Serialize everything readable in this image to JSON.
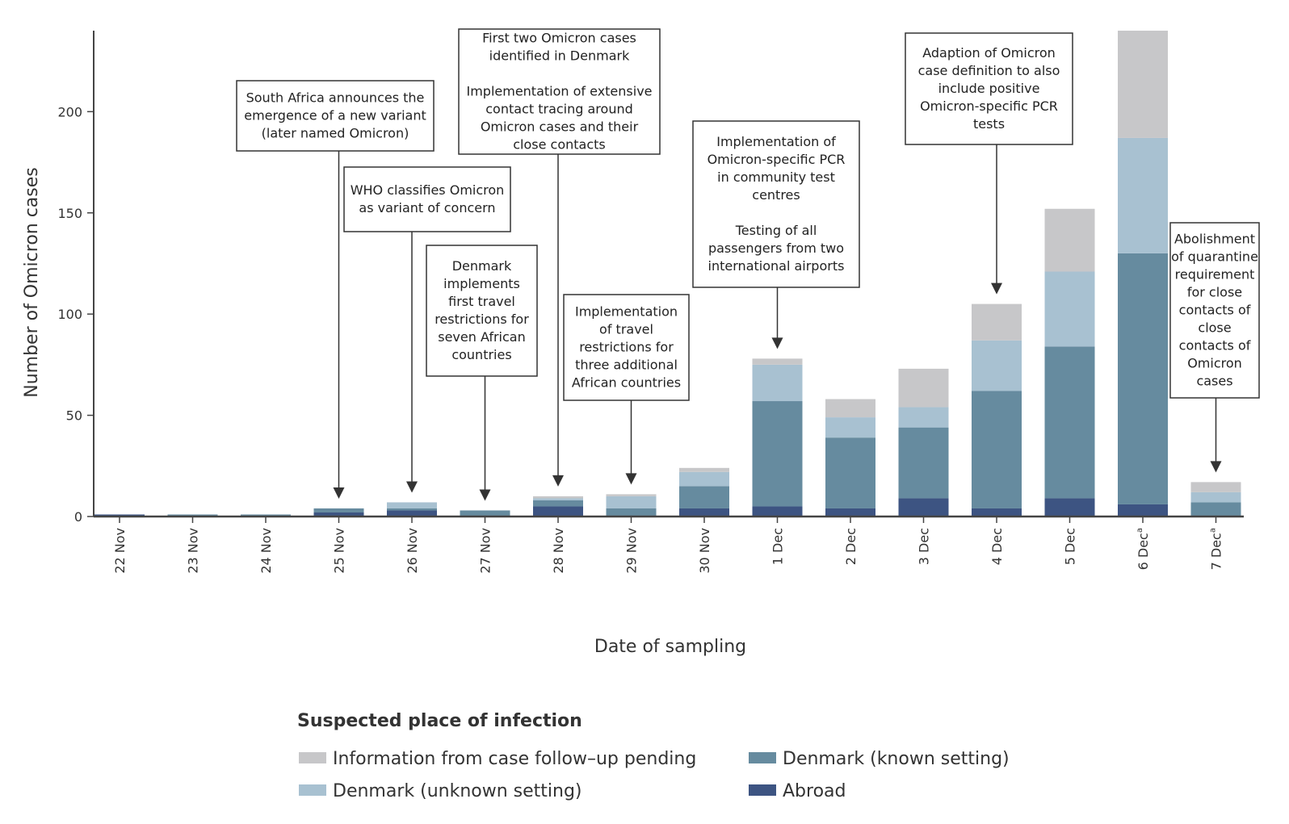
{
  "chart_data": {
    "type": "bar",
    "stacked": true,
    "categories": [
      "22 Nov",
      "23 Nov",
      "24 Nov",
      "25 Nov",
      "26 Nov",
      "27 Nov",
      "28 Nov",
      "29 Nov",
      "30 Nov",
      "1 Dec",
      "2 Dec",
      "3 Dec",
      "4 Dec",
      "5 Dec",
      "6 Dec",
      "7 Dec"
    ],
    "category_superscripts": [
      "",
      "",
      "",
      "",
      "",
      "",
      "",
      "",
      "",
      "",
      "",
      "",
      "",
      "",
      "a",
      "a"
    ],
    "series": [
      {
        "name": "Abroad",
        "color": "#3d5482",
        "values": [
          1,
          0,
          0,
          2,
          3,
          0,
          5,
          0,
          4,
          5,
          4,
          9,
          4,
          9,
          6,
          0
        ]
      },
      {
        "name": "Denmark (known setting)",
        "color": "#668b9f",
        "values": [
          0,
          1,
          1,
          2,
          1,
          3,
          3,
          4,
          11,
          52,
          35,
          35,
          58,
          75,
          124,
          7
        ]
      },
      {
        "name": "Denmark (unknown setting)",
        "color": "#a8c1d1",
        "values": [
          0,
          0,
          0,
          0,
          3,
          0,
          1,
          6,
          7,
          18,
          10,
          10,
          25,
          37,
          57,
          5
        ]
      },
      {
        "name": "Information from case follow–up pending",
        "color": "#c7c7c9",
        "values": [
          0,
          0,
          0,
          0,
          0,
          0,
          1,
          1,
          2,
          3,
          9,
          19,
          18,
          31,
          53,
          5
        ]
      }
    ],
    "title": "",
    "xlabel": "Date of sampling",
    "ylabel": "Number of Omicron cases",
    "ylim": [
      0,
      240
    ],
    "yticks": [
      0,
      50,
      100,
      150,
      200
    ],
    "legend": {
      "title": "Suspected place of infection",
      "placement": "bottom",
      "order": [
        "Information from case follow–up pending",
        "Denmark (known setting)",
        "Denmark (unknown setting)",
        "Abroad"
      ]
    },
    "annotations": [
      {
        "id": "south-africa",
        "category_index": 3,
        "lines": [
          "South Africa  announces the",
          "emergence of a new variant",
          "(later named Omicron)"
        ]
      },
      {
        "id": "who-voc",
        "category_index": 4,
        "lines": [
          "WHO classifies Omicron",
          "as variant of concern"
        ]
      },
      {
        "id": "travel-seven",
        "category_index": 5,
        "lines": [
          "Denmark",
          "implements",
          "first travel",
          "restrictions for",
          "seven African",
          "countries"
        ]
      },
      {
        "id": "first-cases",
        "category_index": 6,
        "lines": [
          "First two Omicron cases",
          "identified in Denmark",
          "",
          "Implementation of extensive",
          "contact tracing around",
          "Omicron cases and their",
          "close contacts"
        ]
      },
      {
        "id": "travel-three",
        "category_index": 7,
        "lines": [
          "Implementation",
          "of travel",
          "restrictions for",
          "three additional",
          "African countries"
        ]
      },
      {
        "id": "specific-pcr",
        "category_index": 9,
        "lines": [
          "Implementation of",
          "Omicron-specific PCR",
          "in community test",
          "centres",
          "",
          "Testing of all",
          "passengers from two",
          "international airports"
        ]
      },
      {
        "id": "case-definition",
        "category_index": 12,
        "lines": [
          "Adaption of Omicron",
          "case definition to also",
          "include positive",
          "Omicron-specific PCR",
          "tests"
        ]
      },
      {
        "id": "quarantine",
        "category_index": 15,
        "lines": [
          "Abolishment",
          "of quarantine",
          "requirement",
          "for close",
          "contacts of",
          "close",
          "contacts of",
          "Omicron",
          "cases"
        ]
      }
    ]
  }
}
